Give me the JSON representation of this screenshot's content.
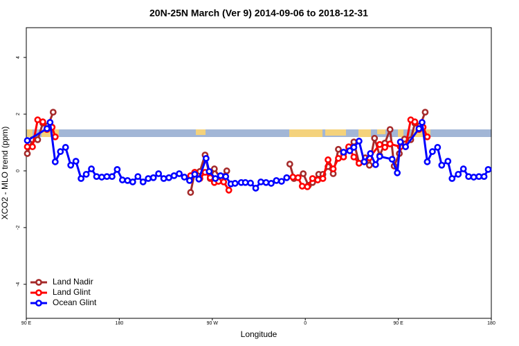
{
  "chart_data": {
    "type": "line",
    "title": "20N-25N March (Ver 9)   2014-09-06 to 2018-12-31",
    "xlabel": "Longitude",
    "ylabel": "XCO2 - MLO trend (ppm)",
    "xlim": [
      90,
      540
    ],
    "xticks": [
      {
        "value": 90,
        "label": "90 E"
      },
      {
        "value": 180,
        "label": "180"
      },
      {
        "value": 270,
        "label": "90 W"
      },
      {
        "value": 360,
        "label": "0"
      },
      {
        "value": 450,
        "label": "90 E"
      },
      {
        "value": 540,
        "label": "180"
      }
    ],
    "ylim": [
      -5.2,
      5.05
    ],
    "yticks": [
      -4,
      -2,
      0,
      2,
      4
    ],
    "legend": "bottomleft",
    "series": [
      {
        "name": "Land Nadir",
        "color": "#a52a2a",
        "x": [
          91,
          96,
          101,
          106,
          111,
          116,
          null,
          249,
          253,
          258,
          263,
          268,
          272,
          278,
          284,
          null,
          345,
          349,
          358,
          363,
          367,
          373,
          377,
          382,
          387,
          392,
          397,
          402,
          407,
          412,
          418,
          422,
          427,
          432,
          437,
          442,
          446,
          451,
          456,
          462,
          466,
          471,
          476
        ],
        "values": [
          0.61,
          1.1,
          1.1,
          1.68,
          1.59,
          2.07,
          null,
          -0.76,
          -0.05,
          -0.02,
          0.56,
          -0.27,
          0.07,
          -0.27,
          0.0,
          null,
          0.24,
          -0.27,
          -0.1,
          -0.51,
          -0.41,
          -0.12,
          -0.12,
          0.15,
          -0.1,
          0.76,
          0.61,
          0.83,
          1.02,
          0.27,
          0.46,
          0.2,
          1.15,
          0.54,
          0.98,
          1.46,
          0.17,
          0.61,
          1.12,
          1.1,
          1.68,
          1.59,
          2.07
        ]
      },
      {
        "name": "Land Glint",
        "color": "#ff0000",
        "x": [
          91,
          96,
          101,
          106,
          110,
          115,
          118,
          null,
          249,
          253,
          258,
          263,
          268,
          272,
          276,
          281,
          286,
          null,
          348,
          353,
          357,
          362,
          367,
          372,
          377,
          382,
          387,
          392,
          397,
          402,
          407,
          412,
          422,
          432,
          437,
          442,
          452,
          457,
          462,
          466,
          470,
          474,
          478
        ],
        "values": [
          0.85,
          0.85,
          1.8,
          1.73,
          1.46,
          1.54,
          1.2,
          null,
          -0.17,
          -0.05,
          -0.27,
          -0.05,
          -0.24,
          -0.41,
          -0.37,
          -0.39,
          -0.68,
          null,
          -0.22,
          -0.24,
          -0.54,
          -0.56,
          -0.27,
          -0.32,
          -0.27,
          0.39,
          0.07,
          0.44,
          0.49,
          0.85,
          0.49,
          0.27,
          0.46,
          0.93,
          0.83,
          0.95,
          0.85,
          0.85,
          1.8,
          1.73,
          1.46,
          1.54,
          1.2
        ]
      },
      {
        "name": "Ocean Glint",
        "color": "#0000ff",
        "x": [
          91,
          110,
          113,
          118,
          123,
          128,
          133,
          138,
          143,
          148,
          153,
          158,
          163,
          168,
          173,
          178,
          183,
          188,
          193,
          198,
          203,
          208,
          213,
          218,
          223,
          228,
          233,
          238,
          243,
          248,
          253,
          257,
          264,
          267,
          273,
          278,
          283,
          288,
          292,
          298,
          302,
          307,
          312,
          317,
          322,
          327,
          332,
          337,
          342,
          null,
          397,
          403,
          407,
          412,
          417,
          423,
          428,
          432,
          444,
          449,
          452,
          457,
          470,
          473,
          478,
          483,
          488,
          492,
          498,
          502,
          508,
          513,
          518,
          523,
          528,
          533,
          537
        ],
        "values": [
          1.07,
          1.49,
          1.71,
          0.32,
          0.68,
          0.83,
          0.2,
          0.34,
          -0.27,
          -0.12,
          0.07,
          -0.2,
          -0.22,
          -0.2,
          -0.2,
          0.05,
          -0.32,
          -0.34,
          -0.39,
          -0.2,
          -0.39,
          -0.27,
          -0.24,
          -0.1,
          -0.27,
          -0.24,
          -0.17,
          -0.1,
          -0.22,
          -0.34,
          -0.12,
          -0.29,
          0.44,
          -0.02,
          -0.27,
          -0.17,
          -0.2,
          -0.46,
          -0.44,
          -0.41,
          -0.41,
          -0.43,
          -0.61,
          -0.39,
          -0.41,
          -0.44,
          -0.34,
          -0.37,
          -0.24,
          null,
          0.66,
          0.71,
          0.83,
          1.05,
          0.32,
          0.61,
          0.22,
          0.51,
          0.41,
          -0.07,
          1.02,
          0.85,
          1.49,
          1.71,
          0.32,
          0.68,
          0.83,
          0.2,
          0.34,
          -0.27,
          -0.12,
          0.07,
          -0.2,
          -0.22,
          -0.2,
          -0.2,
          0.05
        ]
      }
    ]
  }
}
